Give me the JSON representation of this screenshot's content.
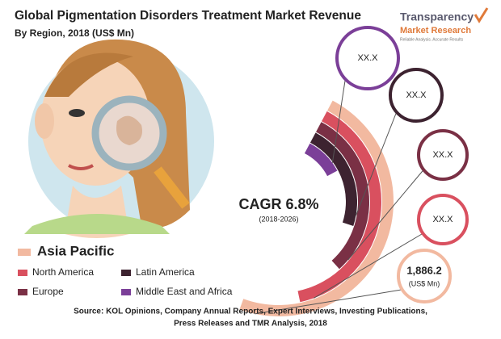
{
  "header": {
    "title": "Global Pigmentation Disorders Treatment Market Revenue",
    "subtitle": "By Region, 2018 (US$ Mn)"
  },
  "logo": {
    "line1": "Transparency",
    "line2": "Market Research",
    "tagline": "Reliable Analysis. Accurate Results"
  },
  "cagr": {
    "label": "CAGR 6.8%",
    "period": "(2018-2026)"
  },
  "regions": [
    {
      "name": "Asia Pacific",
      "color": "#f2b9a0",
      "value": "1,886.2",
      "unit": "(US$ Mn)"
    },
    {
      "name": "North America",
      "color": "#d9505f",
      "value": "XX.X"
    },
    {
      "name": "Europe",
      "color": "#7a3045",
      "value": "XX.X"
    },
    {
      "name": "Latin America",
      "color": "#3d2330",
      "value": "XX.X"
    },
    {
      "name": "Middle East and Africa",
      "color": "#7b3f98",
      "value": "XX.X"
    }
  ],
  "source": {
    "line1": "Source: KOL Opinions, Company Annual Reports, Expert Interviews, Investing Publications,",
    "line2": "Press Releases and TMR Analysis, 2018"
  }
}
